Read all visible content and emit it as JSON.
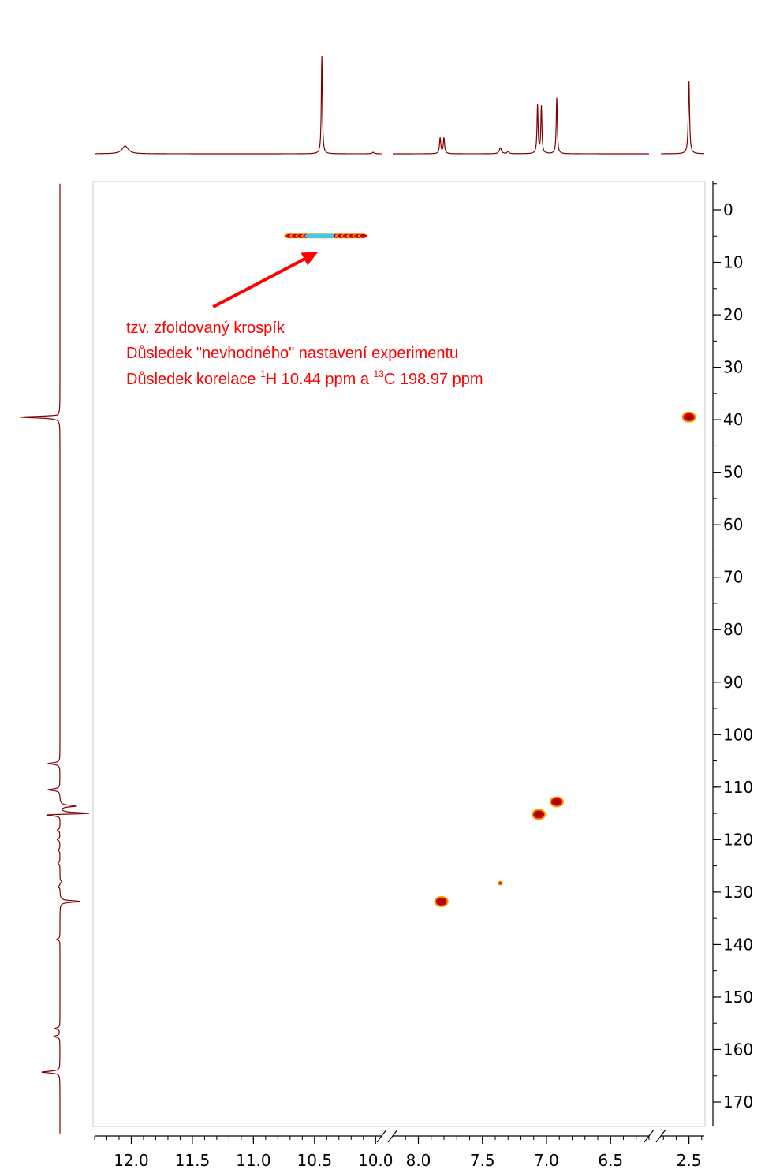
{
  "chart_data": {
    "type": "heatmap",
    "title": "",
    "xlabel": "",
    "ylabel": "",
    "x_axis": {
      "segments": [
        {
          "from": 12.3,
          "to": 9.95
        },
        {
          "from": 8.2,
          "to": 6.2
        },
        {
          "from": 2.72,
          "to": 2.38
        }
      ],
      "tick_labels": [
        {
          "value": 12.0,
          "label": "12.0"
        },
        {
          "value": 11.5,
          "label": "11.5"
        },
        {
          "value": 11.0,
          "label": "11.0"
        },
        {
          "value": 10.5,
          "label": "10.5"
        },
        {
          "value": 10.0,
          "label": "10.0"
        },
        {
          "value": 8.0,
          "label": "8.0"
        },
        {
          "value": 7.5,
          "label": "7.5"
        },
        {
          "value": 7.0,
          "label": "7.0"
        },
        {
          "value": 6.5,
          "label": "6.5"
        },
        {
          "value": 2.5,
          "label": "2.5"
        }
      ],
      "minor_step": 0.1,
      "axis_breaks": true
    },
    "y_axis": {
      "ylim": [
        -5,
        176
      ],
      "position": "right",
      "tick_labels": [
        {
          "value": 0,
          "label": "0"
        },
        {
          "value": 10,
          "label": "10"
        },
        {
          "value": 20,
          "label": "20"
        },
        {
          "value": 30,
          "label": "30"
        },
        {
          "value": 40,
          "label": "40"
        },
        {
          "value": 50,
          "label": "50"
        },
        {
          "value": 60,
          "label": "60"
        },
        {
          "value": 70,
          "label": "70"
        },
        {
          "value": 80,
          "label": "80"
        },
        {
          "value": 90,
          "label": "90"
        },
        {
          "value": 100,
          "label": "100"
        },
        {
          "value": 110,
          "label": "110"
        },
        {
          "value": 120,
          "label": "120"
        },
        {
          "value": 130,
          "label": "130"
        },
        {
          "value": 140,
          "label": "140"
        },
        {
          "value": 150,
          "label": "150"
        },
        {
          "value": 160,
          "label": "160"
        },
        {
          "value": 170,
          "label": "170"
        }
      ],
      "minor_step": 5
    },
    "cross_peaks": [
      {
        "h": 10.44,
        "c": 5.0,
        "folded": true,
        "h_span": [
          10.72,
          10.1
        ]
      },
      {
        "h": 2.5,
        "c": 39.5
      },
      {
        "h": 7.06,
        "c": 115.2
      },
      {
        "h": 6.92,
        "c": 112.8
      },
      {
        "h": 7.82,
        "c": 131.8
      },
      {
        "h": 7.36,
        "c": 128.3,
        "weak": true
      }
    ],
    "h1_projection_peaks": [
      {
        "ppm": 12.05,
        "height": 0.08,
        "width": 0.03
      },
      {
        "ppm": 10.44,
        "height": 1.0,
        "width": 0.005
      },
      {
        "ppm": 10.02,
        "height": 0.015,
        "width": 0.01
      },
      {
        "ppm": 7.83,
        "height": 0.16,
        "width": 0.006
      },
      {
        "ppm": 7.8,
        "height": 0.16,
        "width": 0.006
      },
      {
        "ppm": 7.36,
        "height": 0.06,
        "width": 0.01
      },
      {
        "ppm": 7.3,
        "height": 0.02,
        "width": 0.01
      },
      {
        "ppm": 7.07,
        "height": 0.49,
        "width": 0.005
      },
      {
        "ppm": 7.04,
        "height": 0.48,
        "width": 0.005
      },
      {
        "ppm": 6.92,
        "height": 0.57,
        "width": 0.005
      },
      {
        "ppm": 2.5,
        "height": 0.73,
        "width": 0.006
      }
    ],
    "c13_projection_peaks": [
      {
        "ppm": 39.5,
        "height": 1.0,
        "direction": -1
      },
      {
        "ppm": 39.1,
        "height": 0.1,
        "direction": 1
      },
      {
        "ppm": 105.5,
        "height": 0.3,
        "direction": -1
      },
      {
        "ppm": 110.5,
        "height": 0.3,
        "direction": -1
      },
      {
        "ppm": 113.6,
        "height": 0.4,
        "direction": 1
      },
      {
        "ppm": 115.0,
        "height": 0.85,
        "direction": 1
      },
      {
        "ppm": 115.3,
        "height": 0.55,
        "direction": -1
      },
      {
        "ppm": 118.2,
        "height": 0.07,
        "direction": -1
      },
      {
        "ppm": 120.0,
        "height": 0.07,
        "direction": -1
      },
      {
        "ppm": 122.0,
        "height": 0.05,
        "direction": -1
      },
      {
        "ppm": 124.5,
        "height": 0.05,
        "direction": -1
      },
      {
        "ppm": 128.0,
        "height": 0.05,
        "direction": 1
      },
      {
        "ppm": 129.0,
        "height": 0.05,
        "direction": -1
      },
      {
        "ppm": 131.8,
        "height": 0.5,
        "direction": 1
      },
      {
        "ppm": 139.0,
        "height": 0.08,
        "direction": -1
      },
      {
        "ppm": 156.0,
        "height": 0.12,
        "direction": -1
      },
      {
        "ppm": 157.5,
        "height": 0.15,
        "direction": -1
      },
      {
        "ppm": 164.3,
        "height": 0.45,
        "direction": -1
      }
    ],
    "annotation": {
      "line1": "tzv. zfoldovaný krospík",
      "line2": "Důsledek \"nevhodného\" nastavení experimentu",
      "line3_a": "Důsledek korelace ",
      "line3_sup1": "1",
      "line3_b": "H 10.44 ppm a ",
      "line3_sup2": "13",
      "line3_c": "C 198.97 ppm",
      "arrow_to": {
        "h": 10.47,
        "c": 8.0
      },
      "arrow_from": {
        "h": 11.33,
        "c": 18.5
      }
    },
    "colors": {
      "spectrum": "#800000",
      "annotation": "#ff0000",
      "peak_outer": "#ff9900",
      "peak_core": "#cc0000",
      "peak_dark": "#8b0000",
      "folded_phase": "#33ccff",
      "frame": "#cccccc"
    },
    "grid": false
  }
}
